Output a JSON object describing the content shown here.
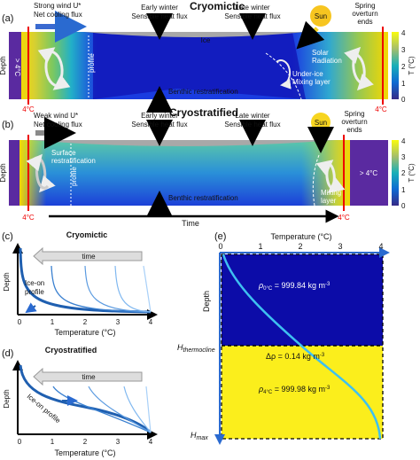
{
  "panel_a": {
    "label": "(a)",
    "title": "Cryomictic",
    "wind": [
      "Strong wind U*",
      "Net cooling flux"
    ],
    "early": [
      "Early winter",
      "Sensible heat flux"
    ],
    "late": [
      "Late winter",
      "Sensible heat flux"
    ],
    "sun": "Sun",
    "spring": [
      "Spring",
      "overturn",
      "ends"
    ],
    "ice": "Ice",
    "profile": "profile",
    "solar": [
      "Solar",
      "Radiation"
    ],
    "mixing": [
      "Under-ice",
      "Mixing layer"
    ],
    "benthic": "Benthic restratification",
    "depth": "Depth",
    "warm": "> 4°C",
    "edge_temps": [
      "4°C",
      "4°C"
    ],
    "colorbar": {
      "ticks": [
        4,
        3,
        2,
        1,
        0
      ],
      "label": "T (°C)"
    }
  },
  "panel_b": {
    "label": "(b)",
    "title": "Cryostratified",
    "wind": [
      "Weak wind U*",
      "Net cooling flux"
    ],
    "early": [
      "Early winter",
      "Sensible heat flux"
    ],
    "late": [
      "Late winter",
      "Sensible heat flux"
    ],
    "sun": "Sun",
    "spring": [
      "Spring",
      "overturn",
      "ends"
    ],
    "surface": [
      "Surface",
      "restratification"
    ],
    "profile": "profile",
    "mixing": [
      "Mixing",
      "layer"
    ],
    "benthic": "Benthic restratification",
    "depth": "Depth",
    "warm": "> 4°C",
    "edge_temps": [
      "4°C",
      "4°C"
    ],
    "time": "Time",
    "colorbar": {
      "ticks": [
        4,
        3,
        2,
        1,
        0
      ],
      "label": "T (°C)"
    }
  },
  "panel_c": {
    "label": "(c)",
    "title": "Cryomictic",
    "time": "time",
    "iceon": [
      "Ice-on",
      "profile"
    ],
    "depth": "Depth",
    "xticks": [
      0,
      1,
      2,
      3,
      4
    ],
    "xlabel": "Temperature (°C)"
  },
  "panel_d": {
    "label": "(d)",
    "title": "Cryostratified",
    "time": "time",
    "iceon": "Ice-on profile",
    "depth": "Depth",
    "xticks": [
      0,
      1,
      2,
      3,
      4
    ],
    "xlabel": "Temperature (°C)"
  },
  "panel_e": {
    "label": "(e)",
    "xlabel": "Temperature (°C)",
    "xticks": [
      0,
      1,
      2,
      3,
      4
    ],
    "depth": "Depth",
    "h_thermocline": {
      "symbol": "H",
      "sub": "thermocline"
    },
    "h_max": {
      "symbol": "H",
      "sub": "max"
    },
    "rho0": {
      "symbol": "ρ",
      "sub": "0°C",
      "text": " = 999.84 kg m",
      "sup": "-3"
    },
    "drho": {
      "symbol": "Δρ",
      "text": " = 0.14 kg m",
      "sup": "-3"
    },
    "rho4": {
      "symbol": "ρ",
      "sub": "4°C",
      "text": " = 999.98 kg m",
      "sup": "-3"
    }
  }
}
